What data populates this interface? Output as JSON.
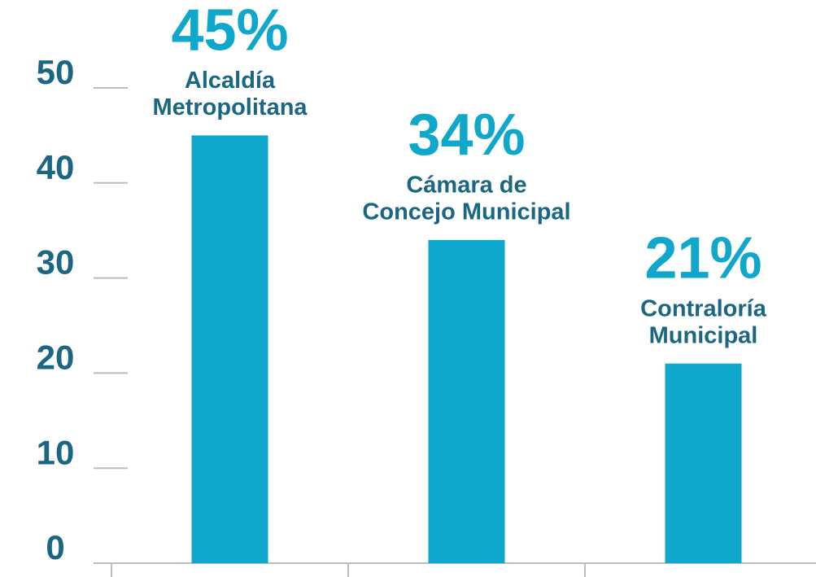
{
  "chart_data": {
    "type": "bar",
    "categories": [
      [
        "Alcaldía",
        "Metropolitana"
      ],
      [
        "Cámara de",
        "Concejo Municipal"
      ],
      [
        "Contraloría",
        "Municipal"
      ]
    ],
    "values": [
      45,
      34,
      21
    ],
    "value_labels": [
      "45%",
      "34%",
      "21%"
    ],
    "color": "#0fa7cb",
    "ylim": [
      0,
      50
    ],
    "yticks": [
      0,
      10,
      20,
      30,
      40,
      50
    ]
  }
}
